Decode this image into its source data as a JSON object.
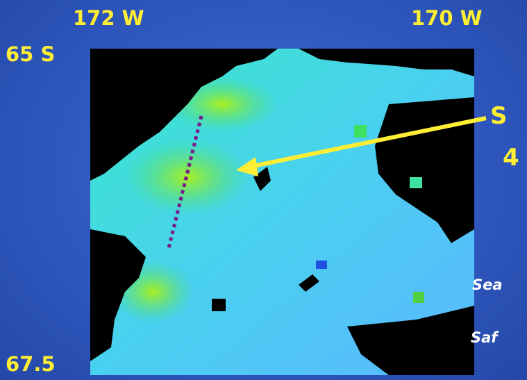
{
  "labels": {
    "top_left": "172 W",
    "top_right": "170 W",
    "left_top": "65 S",
    "left_bottom": "67.5",
    "callout_line1": "S",
    "callout_line2": "4",
    "note_line1": "Sea",
    "note_line2": "Saf"
  }
}
